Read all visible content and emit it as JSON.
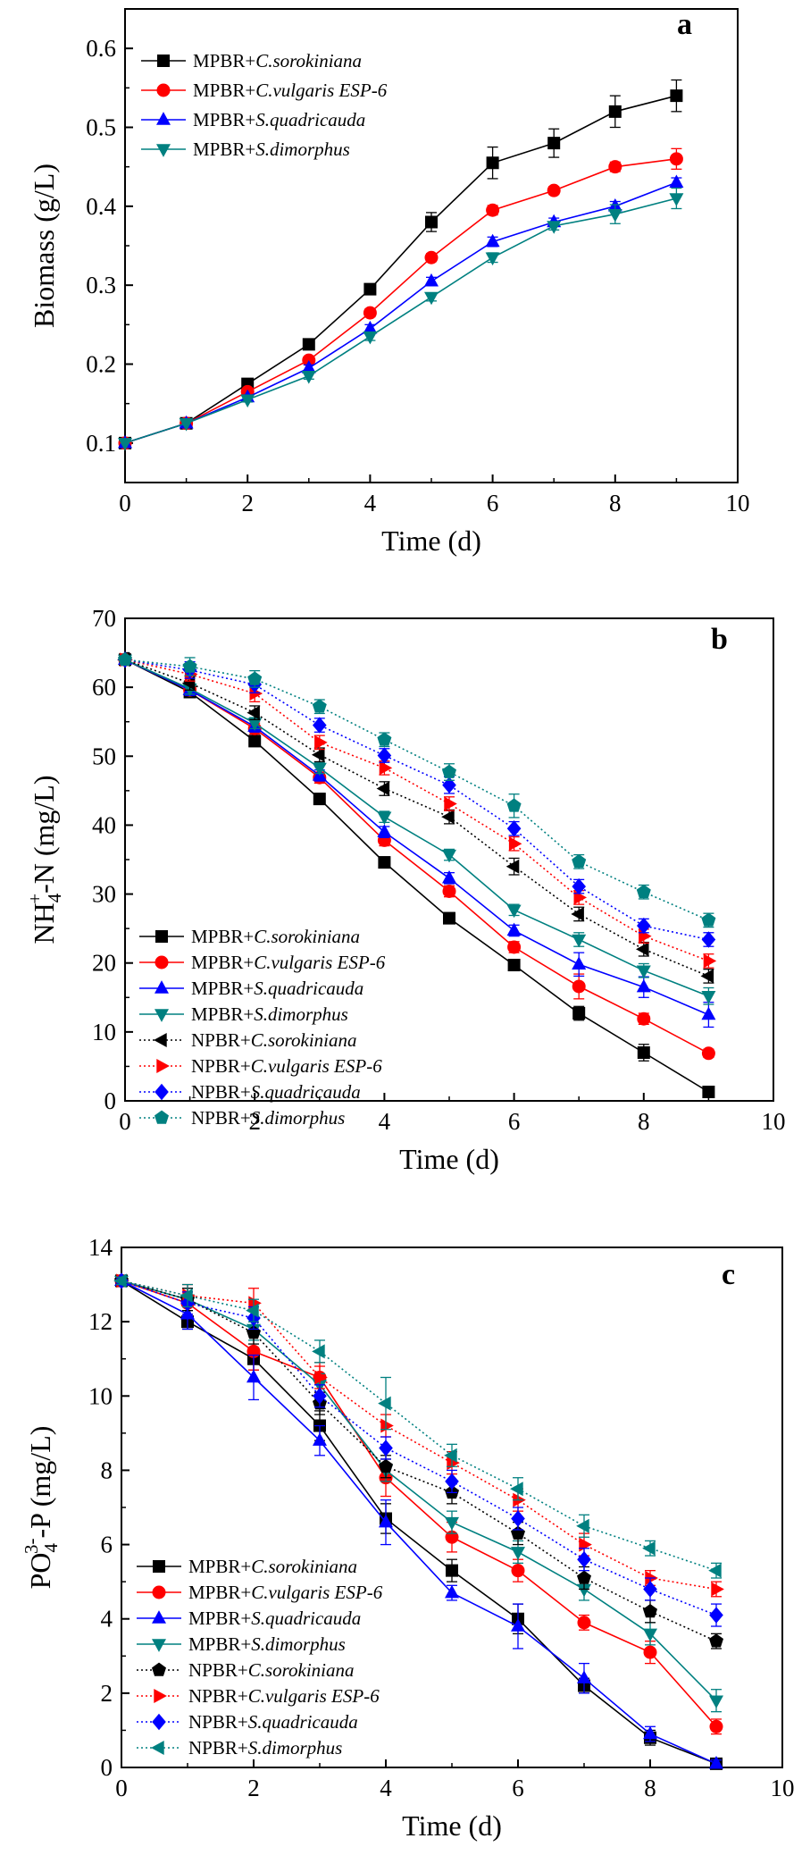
{
  "chart_data": [
    {
      "type": "line",
      "panel_label": "a",
      "title": "",
      "xlabel": "Time (d)",
      "ylabel": "Biomass (g/L)",
      "xlim": [
        0,
        10
      ],
      "ylim": [
        0.05,
        0.65
      ],
      "xticks": [
        "0",
        "2",
        "4",
        "6",
        "8",
        "10"
      ],
      "yticks": [
        "0.1",
        "0.2",
        "0.3",
        "0.4",
        "0.5",
        "0.6"
      ],
      "legend_position": "top-left",
      "x": [
        0,
        1,
        2,
        3,
        4,
        5,
        6,
        7,
        8,
        9
      ],
      "series": [
        {
          "name_prefix": "MPBR+",
          "name_species": "C.sorokiniana",
          "color": "#000000",
          "marker": "square",
          "dash": "solid",
          "values": [
            0.1,
            0.125,
            0.175,
            0.225,
            0.295,
            0.38,
            0.455,
            0.48,
            0.52,
            0.54
          ],
          "errors": [
            0,
            0,
            0.003,
            0.004,
            0.005,
            0.012,
            0.02,
            0.018,
            0.02,
            0.02
          ]
        },
        {
          "name_prefix": "MPBR+",
          "name_species": "C.vulgaris ESP-6",
          "color": "#ff0000",
          "marker": "circle",
          "dash": "solid",
          "values": [
            0.1,
            0.125,
            0.165,
            0.205,
            0.265,
            0.335,
            0.395,
            0.42,
            0.45,
            0.46
          ],
          "errors": [
            0,
            0,
            0.003,
            0.004,
            0.005,
            0.005,
            0.006,
            0.005,
            0.006,
            0.013
          ]
        },
        {
          "name_prefix": "MPBR+",
          "name_species": "S.quadricauda",
          "color": "#0000ff",
          "marker": "triangle-up",
          "dash": "solid",
          "values": [
            0.1,
            0.125,
            0.158,
            0.195,
            0.245,
            0.305,
            0.355,
            0.38,
            0.4,
            0.43
          ],
          "errors": [
            0,
            0,
            0.003,
            0.004,
            0.005,
            0.005,
            0.006,
            0.005,
            0.006,
            0.006
          ]
        },
        {
          "name_prefix": "MPBR+",
          "name_species": "S.dimorphus",
          "color": "#008080",
          "marker": "triangle-down",
          "dash": "solid",
          "values": [
            0.1,
            0.125,
            0.155,
            0.185,
            0.235,
            0.285,
            0.335,
            0.375,
            0.39,
            0.41
          ],
          "errors": [
            0,
            0,
            0.003,
            0.004,
            0.005,
            0.005,
            0.006,
            0.005,
            0.012,
            0.013
          ]
        }
      ]
    },
    {
      "type": "line",
      "panel_label": "b",
      "title": "",
      "xlabel": "Time (d)",
      "ylabel": "NH4+-N (mg/L)",
      "ylabel_parts": {
        "main": "NH",
        "sub": "4",
        "sup": "+",
        "rest": "-N (mg/L)"
      },
      "xlim": [
        0,
        10
      ],
      "ylim": [
        0,
        70
      ],
      "xticks": [
        "0",
        "2",
        "4",
        "6",
        "8",
        "10"
      ],
      "yticks": [
        "0",
        "10",
        "20",
        "30",
        "40",
        "50",
        "60",
        "70"
      ],
      "legend_position": "bottom-left",
      "x": [
        0,
        1,
        2,
        3,
        4,
        5,
        6,
        7,
        8,
        9
      ],
      "series": [
        {
          "name_prefix": "MPBR+",
          "name_species": "C.sorokiniana",
          "color": "#000000",
          "marker": "square",
          "dash": "solid",
          "values": [
            64,
            59.3,
            52.2,
            43.8,
            34.6,
            26.5,
            19.7,
            12.7,
            7.0,
            1.3
          ],
          "errors": [
            0.5,
            0.8,
            0.8,
            0.8,
            0.8,
            0.8,
            0.8,
            1.0,
            1.2,
            0.5
          ]
        },
        {
          "name_prefix": "MPBR+",
          "name_species": "C.vulgaris ESP-6",
          "color": "#ff0000",
          "marker": "circle",
          "dash": "solid",
          "values": [
            64,
            59.6,
            54.0,
            46.9,
            37.8,
            30.4,
            22.3,
            16.6,
            11.9,
            6.9
          ],
          "errors": [
            0.5,
            0.8,
            0.8,
            0.8,
            0.8,
            0.8,
            0.8,
            1.8,
            0.8,
            0.6
          ]
        },
        {
          "name_prefix": "MPBR+",
          "name_species": "S.quadricauda",
          "color": "#0000ff",
          "marker": "triangle-up",
          "dash": "solid",
          "values": [
            64,
            59.6,
            54.3,
            47.2,
            39.0,
            32.3,
            24.7,
            19.8,
            16.5,
            12.5
          ],
          "errors": [
            0.5,
            0.8,
            0.8,
            0.8,
            0.8,
            0.8,
            0.8,
            1.7,
            1.5,
            1.8
          ]
        },
        {
          "name_prefix": "MPBR+",
          "name_species": "S.dimorphus",
          "color": "#008080",
          "marker": "triangle-down",
          "dash": "solid",
          "values": [
            64,
            59.8,
            54.8,
            48.3,
            41.2,
            35.7,
            27.7,
            23.4,
            18.9,
            15.2
          ],
          "errors": [
            0.5,
            0.8,
            0.8,
            0.8,
            0.8,
            0.8,
            0.8,
            1.0,
            1.0,
            1.2
          ]
        },
        {
          "name_prefix": "NPBR+",
          "name_species": "C.sorokiniana",
          "color": "#000000",
          "marker": "triangle-left",
          "dash": "dotted",
          "values": [
            64,
            60.6,
            56.3,
            50.2,
            45.3,
            41.2,
            34.0,
            27.1,
            22.0,
            18.1
          ],
          "errors": [
            0.5,
            1.0,
            1.0,
            1.0,
            1.0,
            1.0,
            1.2,
            1.0,
            1.0,
            1.0
          ]
        },
        {
          "name_prefix": "NPBR+",
          "name_species": "C.vulgaris ESP-6",
          "color": "#ff0000",
          "marker": "triangle-right",
          "dash": "dotted",
          "values": [
            64,
            61.9,
            59.1,
            52.0,
            48.3,
            43.1,
            37.3,
            29.5,
            23.9,
            20.3
          ],
          "errors": [
            0.5,
            1.0,
            1.2,
            1.0,
            1.0,
            1.0,
            1.0,
            1.0,
            1.0,
            1.0
          ]
        },
        {
          "name_prefix": "NPBR+",
          "name_species": "S.quadricauda",
          "color": "#0000ff",
          "marker": "diamond",
          "dash": "dotted",
          "values": [
            64,
            62.5,
            60.4,
            54.5,
            50.1,
            45.8,
            39.5,
            31.1,
            25.4,
            23.4
          ],
          "errors": [
            0.5,
            1.2,
            1.2,
            1.0,
            1.0,
            1.2,
            1.0,
            1.0,
            1.0,
            1.0
          ]
        },
        {
          "name_prefix": "NPBR+",
          "name_species": "S.dimorphus",
          "color": "#008080",
          "marker": "pentagon",
          "dash": "dotted",
          "values": [
            64,
            63.0,
            61.2,
            57.2,
            52.4,
            47.7,
            42.8,
            34.7,
            30.3,
            26.2
          ],
          "errors": [
            0.5,
            1.3,
            1.2,
            1.0,
            1.0,
            1.2,
            1.7,
            1.0,
            1.0,
            1.0
          ]
        }
      ]
    },
    {
      "type": "line",
      "panel_label": "c",
      "title": "",
      "xlabel": "Time (d)",
      "ylabel": "PO43--P (mg/L)",
      "ylabel_parts": {
        "main": "PO",
        "sub": "4",
        "sup": "3-",
        "rest": "-P (mg/L)"
      },
      "xlim": [
        0,
        10
      ],
      "ylim": [
        0,
        14
      ],
      "xticks": [
        "0",
        "2",
        "4",
        "6",
        "8",
        "10"
      ],
      "yticks": [
        "0",
        "2",
        "4",
        "6",
        "8",
        "10",
        "12",
        "14"
      ],
      "legend_position": "bottom-left",
      "x": [
        0,
        1,
        2,
        3,
        4,
        5,
        6,
        7,
        8,
        9
      ],
      "series": [
        {
          "name_prefix": "MPBR+",
          "name_species": "C.sorokiniana",
          "color": "#000000",
          "marker": "square",
          "dash": "solid",
          "values": [
            13.1,
            12.0,
            11.0,
            9.2,
            6.7,
            5.3,
            4.0,
            2.2,
            0.8,
            0.1
          ],
          "errors": [
            0.1,
            0.2,
            0.3,
            0.4,
            0.4,
            0.3,
            0.4,
            0.2,
            0.2,
            0.1
          ]
        },
        {
          "name_prefix": "MPBR+",
          "name_species": "C.vulgaris ESP-6",
          "color": "#ff0000",
          "marker": "circle",
          "dash": "solid",
          "values": [
            13.1,
            12.5,
            11.2,
            10.5,
            7.8,
            6.2,
            5.3,
            3.9,
            3.1,
            1.1
          ],
          "errors": [
            0.1,
            0.3,
            0.5,
            0.4,
            0.5,
            0.4,
            0.3,
            0.2,
            0.3,
            0.2
          ]
        },
        {
          "name_prefix": "MPBR+",
          "name_species": "S.quadricauda",
          "color": "#0000ff",
          "marker": "triangle-up",
          "dash": "solid",
          "values": [
            13.1,
            12.2,
            10.5,
            8.8,
            6.6,
            4.7,
            3.8,
            2.4,
            0.9,
            0.1
          ],
          "errors": [
            0.1,
            0.4,
            0.6,
            0.4,
            0.6,
            0.2,
            0.6,
            0.4,
            0.2,
            0.1
          ]
        },
        {
          "name_prefix": "MPBR+",
          "name_species": "S.dimorphus",
          "color": "#008080",
          "marker": "triangle-down",
          "dash": "solid",
          "values": [
            13.1,
            12.6,
            11.8,
            10.3,
            8.0,
            6.6,
            5.8,
            4.8,
            3.6,
            1.8
          ],
          "errors": [
            0.1,
            0.3,
            0.3,
            0.3,
            0.3,
            0.3,
            0.3,
            0.3,
            0.3,
            0.3
          ]
        },
        {
          "name_prefix": "NPBR+",
          "name_species": "C.sorokiniana",
          "color": "#000000",
          "marker": "pentagon",
          "dash": "dotted",
          "values": [
            13.1,
            12.6,
            11.7,
            9.8,
            8.1,
            7.4,
            6.3,
            5.1,
            4.2,
            3.4
          ],
          "errors": [
            0.1,
            0.3,
            0.3,
            0.3,
            0.3,
            0.3,
            0.3,
            0.3,
            0.3,
            0.2
          ]
        },
        {
          "name_prefix": "NPBR+",
          "name_species": "C.vulgaris ESP-6",
          "color": "#ff0000",
          "marker": "triangle-right",
          "dash": "dotted",
          "values": [
            13.1,
            12.7,
            12.5,
            10.5,
            9.2,
            8.2,
            7.2,
            6.0,
            5.1,
            4.8
          ],
          "errors": [
            0.1,
            0.3,
            0.4,
            0.3,
            0.3,
            0.3,
            0.3,
            0.3,
            0.2,
            0.2
          ]
        },
        {
          "name_prefix": "NPBR+",
          "name_species": "S.quadricauda",
          "color": "#0000ff",
          "marker": "diamond",
          "dash": "dotted",
          "values": [
            13.1,
            12.5,
            12.1,
            10.0,
            8.6,
            7.7,
            6.7,
            5.6,
            4.8,
            4.1
          ],
          "errors": [
            0.1,
            0.3,
            0.3,
            0.3,
            0.3,
            0.3,
            0.3,
            0.3,
            0.3,
            0.3
          ]
        },
        {
          "name_prefix": "NPBR+",
          "name_species": "S.dimorphus",
          "color": "#008080",
          "marker": "triangle-left",
          "dash": "dotted",
          "values": [
            13.1,
            12.7,
            12.3,
            11.2,
            9.8,
            8.4,
            7.5,
            6.5,
            5.9,
            5.3
          ],
          "errors": [
            0.1,
            0.3,
            0.3,
            0.3,
            0.7,
            0.3,
            0.3,
            0.3,
            0.2,
            0.2
          ]
        }
      ]
    }
  ]
}
